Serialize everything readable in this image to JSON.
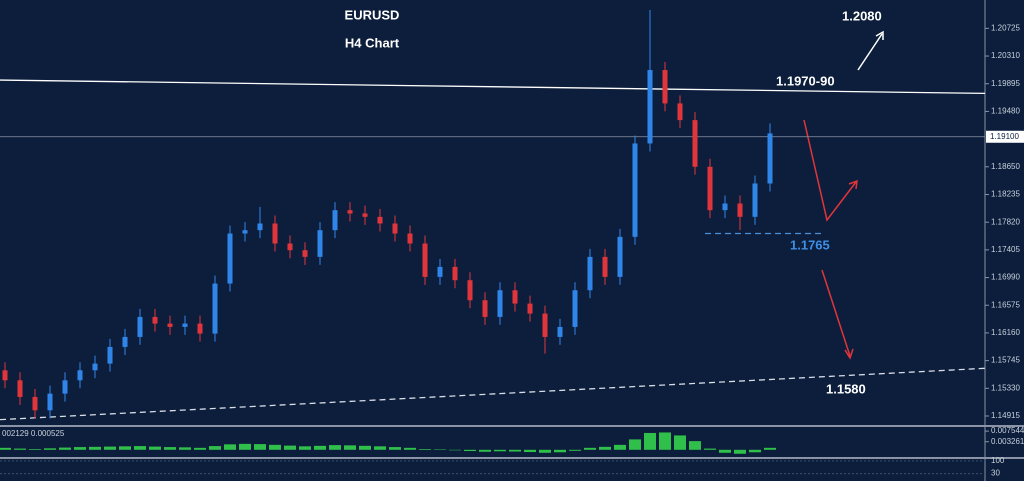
{
  "chart_data": {
    "type": "candlestick",
    "title": "EURUSD",
    "subtitle": "H4 Chart",
    "up_color": "#2f86e8",
    "down_color": "#e0353b",
    "ylim": [
      1.1478,
      1.2115
    ],
    "yticks": [
      1.20725,
      {
        "value": 1.2031,
        "label": "1.20310"
      },
      1.19895,
      {
        "value": 1.1948,
        "label": "1.19480"
      },
      {
        "value": 1.1865,
        "label": "1.18650"
      },
      1.18235,
      {
        "value": 1.1782,
        "label": "1.17820"
      },
      1.17405,
      {
        "value": 1.1699,
        "label": "1.16990"
      },
      1.16575,
      {
        "value": 1.1616,
        "label": "1.16160"
      },
      1.15745,
      {
        "value": 1.1533,
        "label": "1.15330"
      },
      1.14915
    ],
    "current_price": {
      "value": 1.191,
      "label": "1.19100"
    },
    "ohlc": [
      [
        1.156,
        1.1572,
        1.1533,
        1.1545
      ],
      [
        1.1545,
        1.1557,
        1.1508,
        1.152
      ],
      [
        1.152,
        1.1532,
        1.1488,
        1.15
      ],
      [
        1.15,
        1.1537,
        1.1488,
        1.1525
      ],
      [
        1.1525,
        1.1557,
        1.1513,
        1.1545
      ],
      [
        1.1545,
        1.1572,
        1.1533,
        1.156
      ],
      [
        1.156,
        1.1582,
        1.1548,
        1.157
      ],
      [
        1.157,
        1.1607,
        1.1558,
        1.1595
      ],
      [
        1.1595,
        1.1622,
        1.1583,
        1.161
      ],
      [
        1.161,
        1.1652,
        1.1598,
        1.164
      ],
      [
        1.164,
        1.1652,
        1.1618,
        1.163
      ],
      [
        1.163,
        1.1642,
        1.1613,
        1.1625
      ],
      [
        1.1625,
        1.1642,
        1.1613,
        1.163
      ],
      [
        1.163,
        1.1642,
        1.1603,
        1.1615
      ],
      [
        1.1615,
        1.1702,
        1.1603,
        1.169
      ],
      [
        1.169,
        1.1777,
        1.1678,
        1.1765
      ],
      [
        1.1765,
        1.1782,
        1.1753,
        1.177
      ],
      [
        1.177,
        1.1805,
        1.1758,
        1.178
      ],
      [
        1.178,
        1.1792,
        1.1738,
        1.175
      ],
      [
        1.175,
        1.1762,
        1.1728,
        1.174
      ],
      [
        1.174,
        1.1752,
        1.1718,
        1.173
      ],
      [
        1.173,
        1.1782,
        1.1718,
        1.177
      ],
      [
        1.177,
        1.1812,
        1.1758,
        1.18
      ],
      [
        1.18,
        1.1812,
        1.1783,
        1.1795
      ],
      [
        1.1795,
        1.1807,
        1.1778,
        1.179
      ],
      [
        1.179,
        1.1802,
        1.1768,
        1.178
      ],
      [
        1.178,
        1.1792,
        1.1753,
        1.1765
      ],
      [
        1.1765,
        1.1777,
        1.1738,
        1.175
      ],
      [
        1.175,
        1.1762,
        1.1688,
        1.17
      ],
      [
        1.17,
        1.1727,
        1.1688,
        1.1715
      ],
      [
        1.1715,
        1.1727,
        1.1683,
        1.1695
      ],
      [
        1.1695,
        1.1707,
        1.1653,
        1.1665
      ],
      [
        1.1665,
        1.1677,
        1.1628,
        1.164
      ],
      [
        1.164,
        1.1692,
        1.1628,
        1.168
      ],
      [
        1.168,
        1.1692,
        1.1648,
        1.166
      ],
      [
        1.166,
        1.1672,
        1.1633,
        1.1645
      ],
      [
        1.1645,
        1.1657,
        1.1585,
        1.161
      ],
      [
        1.161,
        1.1637,
        1.1598,
        1.1625
      ],
      [
        1.1625,
        1.1692,
        1.1613,
        1.168
      ],
      [
        1.168,
        1.1742,
        1.1668,
        1.173
      ],
      [
        1.173,
        1.1742,
        1.1688,
        1.17
      ],
      [
        1.17,
        1.1772,
        1.1688,
        1.176
      ],
      [
        1.176,
        1.1912,
        1.1748,
        1.19
      ],
      [
        1.19,
        1.21,
        1.1888,
        1.201
      ],
      [
        1.201,
        1.2022,
        1.1948,
        1.196
      ],
      [
        1.196,
        1.1972,
        1.1923,
        1.1935
      ],
      [
        1.1935,
        1.1947,
        1.1853,
        1.1865
      ],
      [
        1.1865,
        1.1877,
        1.1788,
        1.18
      ],
      [
        1.18,
        1.1822,
        1.1788,
        1.181
      ],
      [
        1.181,
        1.1822,
        1.177,
        1.179
      ],
      [
        1.179,
        1.1852,
        1.1778,
        1.184
      ],
      [
        1.184,
        1.193,
        1.1828,
        1.1915
      ]
    ],
    "trendlines": [
      {
        "start": 1.1995,
        "end": 1.1975,
        "color": "#ffffff",
        "dashed": false
      },
      {
        "start": 1.1486,
        "end": 1.1563,
        "color": "#d8dde6",
        "dashed": true
      },
      {
        "start": 1.1765,
        "end": 1.1765,
        "color": "#4a90d9",
        "dashed": true
      }
    ],
    "annotations": [
      {
        "text": "1.2080",
        "color": "#ffffff"
      },
      {
        "text": "1.1970-90",
        "color": "#ffffff"
      },
      {
        "text": "1.1765",
        "color": "#3d8fe6"
      },
      {
        "text": "1.1580",
        "color": "#ffffff"
      }
    ],
    "macd": {
      "label": "002129 0.000525",
      "color": "#2fbf4a",
      "ylim": [
        -0.0025,
        0.0088
      ],
      "yticks": [
        0.007544,
        0.003261
      ],
      "values": [
        0.0008,
        0.0005,
        0.0003,
        0.0006,
        0.0009,
        0.0011,
        0.0012,
        0.0013,
        0.0014,
        0.0015,
        0.0013,
        0.0011,
        0.001,
        0.0008,
        0.0015,
        0.0022,
        0.0024,
        0.0023,
        0.002,
        0.0017,
        0.0014,
        0.0016,
        0.0019,
        0.0018,
        0.0016,
        0.0014,
        0.0011,
        0.0008,
        0.0003,
        0.0002,
        -0.0002,
        -0.0005,
        -0.0008,
        -0.0006,
        -0.0007,
        -0.0009,
        -0.0012,
        -0.001,
        -0.0004,
        0.0008,
        0.0012,
        0.002,
        0.0042,
        0.0068,
        0.007,
        0.0058,
        0.0035,
        0.0005,
        -0.0012,
        -0.0016,
        -0.001,
        0.0008
      ]
    },
    "rsi": {
      "ylim": [
        0,
        105
      ],
      "yticks": [
        100,
        30
      ]
    }
  }
}
